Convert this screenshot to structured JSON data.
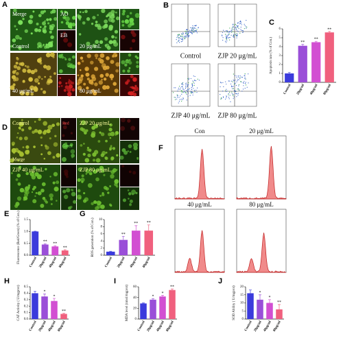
{
  "panel_a": {
    "letter": "A",
    "labels": [
      "Merge",
      "AO",
      "EB",
      "Control",
      "20 μg/mL",
      "40 μg/mL",
      "80 μg/mL"
    ]
  },
  "panel_b": {
    "letter": "B",
    "captions": [
      "Control",
      "ZJP 20 μg/mL",
      "ZJP 40 μg/mL",
      "ZJP 80 μg/mL"
    ]
  },
  "panel_d": {
    "letter": "D",
    "labels": [
      "Control",
      "Red",
      "ZJP 20 μg/mL",
      "Merge",
      "Green",
      "ZJP 40 μg/mL",
      "ZJP 80 μg/mL"
    ]
  },
  "panel_f": {
    "letter": "F",
    "labels": [
      "Con",
      "20 μg/mL",
      "40 μg/mL",
      "80 μg/mL"
    ]
  },
  "chart_data": [
    {
      "type": "bar",
      "panel": "C",
      "y_label": "Apoptosis rate (% of Con.)",
      "categories": [
        "Control",
        "20μg/ml",
        "40μg/ml",
        "80μg/ml"
      ],
      "values": [
        1,
        4.1,
        4.5,
        5.6
      ],
      "errors": [
        0.1,
        0.15,
        0.1,
        0.1
      ],
      "significance": [
        null,
        "**",
        "**",
        "**"
      ],
      "colors": [
        "#3b3bdc",
        "#9a4fd8",
        "#d24fd2",
        "#f0607e"
      ],
      "ylim": [
        0,
        6
      ],
      "yticks": [
        0,
        1,
        2,
        3,
        4,
        5,
        6
      ]
    },
    {
      "type": "bar",
      "panel": "E",
      "y_label": "Fluorescence (Red/Green) (% of Con.)",
      "categories": [
        "Control",
        "20μg/ml",
        "40μg/ml",
        "80μg/ml"
      ],
      "values": [
        1.0,
        0.45,
        0.37,
        0.2
      ],
      "errors": [
        0.01,
        0.03,
        0.03,
        0.03
      ],
      "significance": [
        null,
        "**",
        "**",
        "**"
      ],
      "colors": [
        "#3b3bdc",
        "#9a4fd8",
        "#d24fd2",
        "#f0607e"
      ],
      "ylim": [
        0,
        1.5
      ],
      "yticks": [
        {
          "value": 0,
          "label": "0.0"
        },
        0.5,
        {
          "value": 1,
          "label": "1.0"
        },
        1.5
      ]
    },
    {
      "type": "bar",
      "panel": "G",
      "y_label": "ROS generation (% of Con.)",
      "categories": [
        "Control",
        "20μg/ml",
        "40μg/ml",
        "80μg/ml"
      ],
      "values": [
        1,
        4.3,
        6.9,
        6.9
      ],
      "errors": [
        0.1,
        1.0,
        1.4,
        1.6
      ],
      "significance": [
        null,
        "**",
        "**",
        "**"
      ],
      "colors": [
        "#3b3bdc",
        "#9a4fd8",
        "#d24fd2",
        "#f0607e"
      ],
      "ylim": [
        0,
        10
      ],
      "yticks": [
        0,
        2,
        4,
        6,
        8,
        10
      ]
    },
    {
      "type": "bar",
      "panel": "H",
      "y_label": "CAT Activity ( U/mgprot)",
      "categories": [
        "Control",
        "20μg/ml",
        "40μg/ml",
        "80μg/ml"
      ],
      "values": [
        0.4,
        0.35,
        0.28,
        0.08
      ],
      "errors": [
        0.03,
        0.04,
        0.04,
        0.01
      ],
      "significance": [
        null,
        "*",
        "*",
        "**"
      ],
      "colors": [
        "#3b3bdc",
        "#9a4fd8",
        "#d24fd2",
        "#f0607e"
      ],
      "ylim": [
        0,
        0.5
      ],
      "yticks": [
        {
          "value": 0,
          "label": "0.0"
        },
        0.1,
        0.2,
        0.3,
        0.4,
        0.5
      ]
    },
    {
      "type": "bar",
      "panel": "I",
      "y_label": "MDA level (nmol/mgprot)",
      "categories": [
        "Control",
        "20μg/ml",
        "40μg/ml",
        "80μg/ml"
      ],
      "values": [
        29,
        36,
        42,
        54
      ],
      "errors": [
        1,
        2,
        2,
        2
      ],
      "significance": [
        null,
        "*",
        "*",
        "**"
      ],
      "colors": [
        "#3b3bdc",
        "#9a4fd8",
        "#d24fd2",
        "#f0607e"
      ],
      "ylim": [
        0,
        60
      ],
      "yticks": [
        0,
        20,
        40,
        60
      ]
    },
    {
      "type": "bar",
      "panel": "J",
      "y_label": "SOD Ability ( U/mgprot)",
      "categories": [
        "Control",
        "20μg/ml",
        "40μg/ml",
        "80μg/ml"
      ],
      "values": [
        16,
        12,
        10,
        6
      ],
      "errors": [
        2,
        3,
        2,
        3
      ],
      "significance": [
        null,
        "*",
        "*",
        "**"
      ],
      "colors": [
        "#3b3bdc",
        "#9a4fd8",
        "#d24fd2",
        "#f0607e"
      ],
      "ylim": [
        0,
        20
      ],
      "yticks": [
        0,
        5,
        10,
        15,
        20
      ]
    }
  ]
}
